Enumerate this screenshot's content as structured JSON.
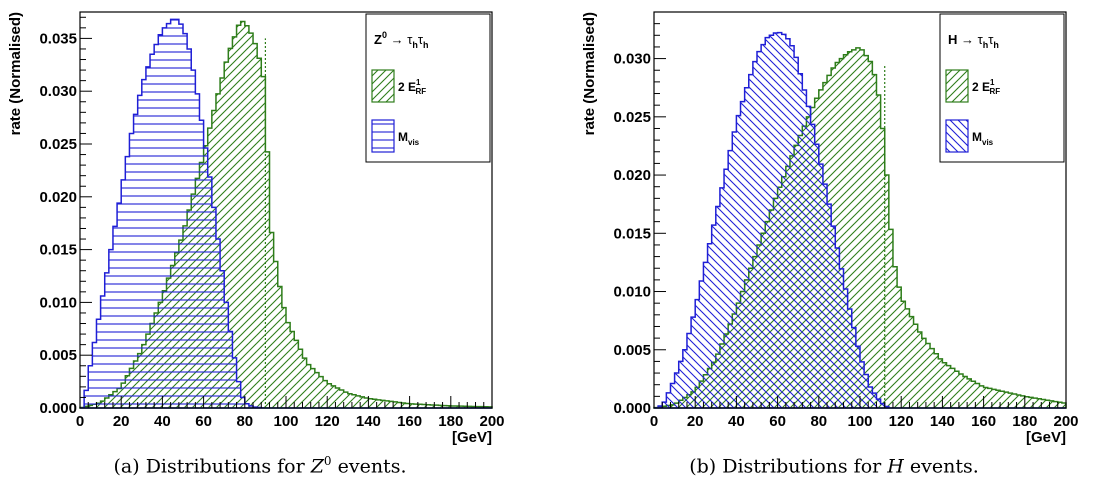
{
  "colors": {
    "green": "#2e7d1a",
    "blue": "#1f1fd6",
    "frame": "#000000"
  },
  "chart_data": [
    {
      "type": "histogram",
      "ylabel": "rate (Normalised)",
      "xlabel": "[GeV]",
      "xlim": [
        0,
        200
      ],
      "ylim": [
        0,
        0.0375
      ],
      "xticks": [
        "0",
        "20",
        "40",
        "60",
        "80",
        "100",
        "120",
        "140",
        "160",
        "180",
        "200"
      ],
      "yticks": [
        "0.000",
        "0.005",
        "0.010",
        "0.015",
        "0.020",
        "0.025",
        "0.030",
        "0.035"
      ],
      "ytick_values": [
        0,
        0.005,
        0.01,
        0.015,
        0.02,
        0.025,
        0.03,
        0.035
      ],
      "legend": {
        "title": {
          "main": "Z",
          "sup": "0",
          "arrow": " → τ",
          "sub1": "h",
          "mid": "τ",
          "sub2": "h"
        },
        "entries": [
          {
            "series": 0,
            "main": "2 E",
            "sup": "1",
            "sub": "RF"
          },
          {
            "series": 1,
            "main": "M",
            "sub": "vis"
          }
        ]
      },
      "series": [
        {
          "color_key": "green",
          "hatch": "diag-up",
          "x": [
            0,
            10,
            20,
            30,
            40,
            50,
            60,
            66,
            72,
            78,
            82,
            86,
            90,
            92,
            96,
            100,
            110,
            120,
            130,
            140,
            160,
            180,
            200
          ],
          "y": [
            0,
            0.0005,
            0.002,
            0.0055,
            0.0105,
            0.0165,
            0.024,
            0.029,
            0.0335,
            0.0368,
            0.036,
            0.034,
            0.0305,
            0.018,
            0.0125,
            0.0085,
            0.0043,
            0.0024,
            0.0014,
            0.0009,
            0.0004,
            0.0002,
            0.0001
          ]
        },
        {
          "color_key": "blue",
          "hatch": "horizontal",
          "x": [
            2,
            5,
            10,
            15,
            20,
            25,
            30,
            35,
            40,
            45,
            48,
            52,
            56,
            60,
            64,
            68,
            72,
            76,
            78,
            80,
            84,
            90
          ],
          "y": [
            0.0005,
            0.004,
            0.0095,
            0.015,
            0.0205,
            0.026,
            0.0305,
            0.0335,
            0.0358,
            0.0368,
            0.0368,
            0.035,
            0.031,
            0.026,
            0.0205,
            0.0145,
            0.0085,
            0.0035,
            0.0015,
            0.0005,
            0.0001,
            0
          ]
        }
      ],
      "cutoff_line": {
        "x": 90,
        "y": 0.035,
        "color_key": "green"
      }
    },
    {
      "type": "histogram",
      "ylabel": "rate (Normalised)",
      "xlabel": "[GeV]",
      "xlim": [
        0,
        200
      ],
      "ylim": [
        0,
        0.034
      ],
      "xticks": [
        "0",
        "20",
        "40",
        "60",
        "80",
        "100",
        "120",
        "140",
        "160",
        "180",
        "200"
      ],
      "yticks": [
        "0.000",
        "0.005",
        "0.010",
        "0.015",
        "0.020",
        "0.025",
        "0.030"
      ],
      "ytick_values": [
        0,
        0.005,
        0.01,
        0.015,
        0.02,
        0.025,
        0.03
      ],
      "legend": {
        "title": {
          "main": "H",
          "sup": "",
          "arrow": " → τ",
          "sub1": "h",
          "mid": "τ",
          "sub2": "h"
        },
        "entries": [
          {
            "series": 0,
            "main": "2 E",
            "sup": "1",
            "sub": "RF"
          },
          {
            "series": 1,
            "main": "M",
            "sub": "vis"
          }
        ]
      },
      "series": [
        {
          "color_key": "green",
          "hatch": "diag-up",
          "x": [
            0,
            10,
            20,
            30,
            40,
            50,
            60,
            70,
            80,
            88,
            94,
            100,
            106,
            110,
            113,
            116,
            120,
            130,
            140,
            150,
            160,
            180,
            200
          ],
          "y": [
            0,
            0.0003,
            0.0015,
            0.0042,
            0.0085,
            0.0135,
            0.0185,
            0.023,
            0.027,
            0.0295,
            0.0305,
            0.031,
            0.0295,
            0.026,
            0.02,
            0.013,
            0.0095,
            0.0062,
            0.004,
            0.0028,
            0.0018,
            0.001,
            0.0004
          ]
        },
        {
          "color_key": "blue",
          "hatch": "diag-down",
          "x": [
            2,
            5,
            10,
            15,
            20,
            25,
            30,
            35,
            40,
            45,
            50,
            55,
            60,
            64,
            68,
            72,
            76,
            80,
            85,
            90,
            95,
            100,
            105,
            110,
            114
          ],
          "y": [
            0,
            0.0005,
            0.0025,
            0.005,
            0.0085,
            0.0125,
            0.0165,
            0.0205,
            0.0245,
            0.0275,
            0.0303,
            0.0318,
            0.0323,
            0.032,
            0.0308,
            0.028,
            0.0252,
            0.0218,
            0.0175,
            0.0128,
            0.0085,
            0.0045,
            0.0018,
            0.0005,
            0
          ]
        }
      ],
      "cutoff_line": {
        "x": 112,
        "y": 0.0295,
        "color_key": "green"
      }
    }
  ],
  "captions": [
    {
      "pre": "(a) Distributions for ",
      "sym": "Z",
      "sup": "0",
      "post": " events."
    },
    {
      "pre": "(b) Distributions for ",
      "sym": "H",
      "sup": "",
      "post": " events."
    }
  ]
}
